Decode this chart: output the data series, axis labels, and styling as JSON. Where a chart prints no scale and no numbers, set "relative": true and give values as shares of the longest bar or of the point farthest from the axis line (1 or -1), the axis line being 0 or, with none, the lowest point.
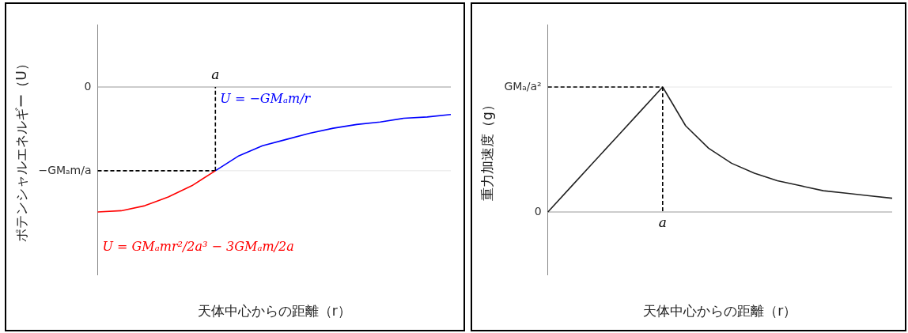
{
  "chart_data": [
    {
      "type": "line",
      "relative": true,
      "xlabel": "天体中心からの距離（r）",
      "ylabel": "ポテンシャルエネルギー（U）",
      "categories": [
        null,
        null,
        null,
        null,
        null,
        null,
        null,
        null,
        null,
        null,
        null,
        null,
        null,
        null,
        null,
        null
      ],
      "legend": false,
      "marker": "none",
      "annotations": [
        "a"
      ],
      "series": [
        {
          "name": "U = GMₐmr²/2a³ − 3GMₐm/2a",
          "color": "#ff0000",
          "values": [
            -1,
            -0.99,
            -0.95,
            -0.88,
            -0.79,
            -0.67,
            null,
            null,
            null,
            null,
            null,
            null,
            null,
            null,
            null,
            null
          ]
        },
        {
          "name": "U = −GMₐm/r",
          "color": "#0000ff",
          "values": [
            null,
            null,
            null,
            null,
            null,
            -0.67,
            -0.55,
            -0.47,
            -0.42,
            -0.37,
            -0.33,
            -0.3,
            -0.28,
            -0.25,
            -0.24,
            -0.22
          ]
        },
        {
          "color": "#000000",
          "line_style": "dashed",
          "values": [
            -0.67,
            -0.67,
            -0.67,
            -0.67,
            -0.67,
            -0.67,
            null,
            null,
            null,
            null,
            null,
            null,
            null,
            null,
            null,
            null
          ]
        }
      ],
      "ref_lines": [
        {
          "axis": "y",
          "value": 0,
          "label": "0",
          "color": "#999999"
        },
        {
          "axis": "y",
          "value": -0.67,
          "label": "−GMₐm/a",
          "color": "#e6e6e6"
        }
      ]
    },
    {
      "type": "line",
      "relative": true,
      "xlabel": "天体中心からの距離（r）",
      "ylabel": "重力加速度（g）",
      "categories": [
        null,
        null,
        null,
        null,
        null,
        null,
        null,
        null,
        null,
        null,
        null,
        null,
        null,
        null,
        null,
        null
      ],
      "legend": false,
      "marker": "none",
      "annotations": [
        "a"
      ],
      "series": [
        {
          "color": "#222222",
          "values": [
            0,
            0.2,
            0.4,
            0.6,
            0.8,
            1,
            0.69,
            0.51,
            0.39,
            0.31,
            0.25,
            0.21,
            0.17,
            0.15,
            0.13,
            0.11
          ]
        },
        {
          "color": "#000000",
          "line_style": "dashed",
          "values": [
            1,
            1,
            1,
            1,
            1,
            1,
            null,
            null,
            null,
            null,
            null,
            null,
            null,
            null,
            null,
            null
          ]
        }
      ],
      "ref_lines": [
        {
          "axis": "y",
          "value": 0,
          "label": "0",
          "color": "#999999"
        },
        {
          "axis": "y",
          "value": 1,
          "label": "GMₐ/a²",
          "color": "#e6e6e6"
        }
      ]
    }
  ]
}
